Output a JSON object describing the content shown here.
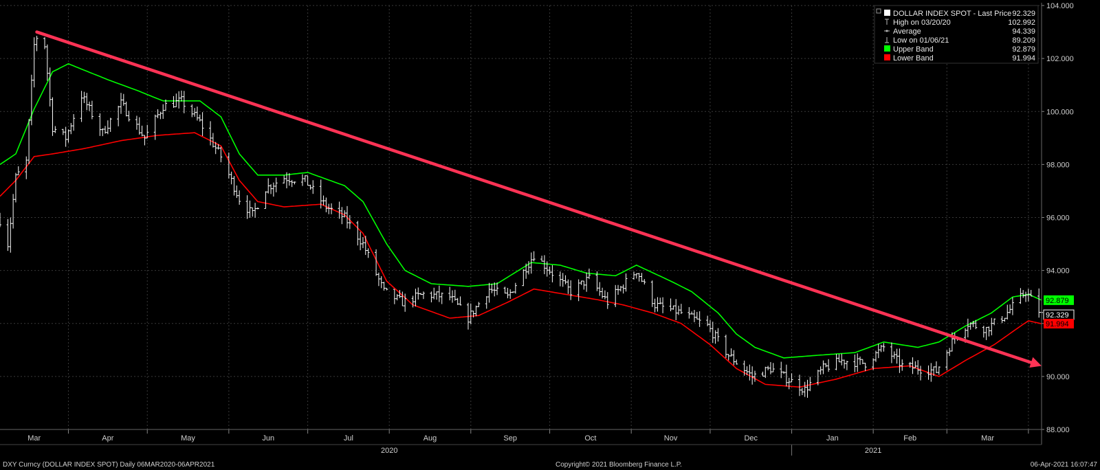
{
  "chart_data": {
    "type": "bar",
    "subtype": "ohlc-with-bands",
    "y_axis": {
      "min": 88,
      "max": 104,
      "ticks": [
        88,
        90,
        92,
        94,
        96,
        98,
        100,
        102,
        104
      ],
      "tick_labels": [
        "88.000",
        "90.000",
        "92.000",
        "94.000",
        "96.000",
        "98.000",
        "100.000",
        "102.000",
        "104.000"
      ],
      "position": "right"
    },
    "x_axis": {
      "months": [
        "Mar",
        "Apr",
        "May",
        "Jun",
        "Jul",
        "Aug",
        "Sep",
        "Oct",
        "Nov",
        "Dec",
        "Jan",
        "Feb",
        "Mar"
      ],
      "years": [
        "2020",
        "2021"
      ]
    },
    "grid": true,
    "legend": {
      "placement": "top-right",
      "entries": [
        {
          "label": "DOLLAR INDEX SPOT - Last Price",
          "value": "92.329",
          "color": "#ffffff",
          "marker": "square"
        },
        {
          "label": "High on 03/20/20",
          "value": "102.992",
          "color": "#bbbbbb",
          "marker": "high"
        },
        {
          "label": "Average",
          "value": "94.339",
          "color": "#bbbbbb",
          "marker": "avg"
        },
        {
          "label": "Low on 01/06/21",
          "value": "89.209",
          "color": "#bbbbbb",
          "marker": "low"
        },
        {
          "label": "Upper Band",
          "value": "92.879",
          "color": "#00ff00",
          "marker": "square"
        },
        {
          "label": "Lower Band",
          "value": "91.994",
          "color": "#ff0000",
          "marker": "square"
        }
      ]
    },
    "last_price_tags": [
      {
        "value": "92.879",
        "y": 92.879,
        "bg": "#00ff00",
        "fg": "#000000"
      },
      {
        "value": "92.329",
        "y": 92.329,
        "bg": "#000000",
        "fg": "#ffffff",
        "border": "#ffffff"
      },
      {
        "value": "91.994",
        "y": 91.994,
        "bg": "#ff0000",
        "fg": "#000000"
      }
    ],
    "series": [
      {
        "name": "DOLLAR INDEX SPOT - Last Price",
        "kind": "price-bars",
        "color": "#ffffff",
        "key_points": [
          [
            "2020-03-06",
            95.9
          ],
          [
            "2020-03-09",
            95.0
          ],
          [
            "2020-03-12",
            97.5
          ],
          [
            "2020-03-16",
            98.1
          ],
          [
            "2020-03-19",
            102.5
          ],
          [
            "2020-03-20",
            102.8
          ],
          [
            "2020-03-23",
            102.5
          ],
          [
            "2020-03-26",
            99.4
          ],
          [
            "2020-03-31",
            99.0
          ],
          [
            "2020-04-06",
            100.6
          ],
          [
            "2020-04-14",
            99.2
          ],
          [
            "2020-04-21",
            100.3
          ],
          [
            "2020-04-30",
            99.0
          ],
          [
            "2020-05-07",
            100.2
          ],
          [
            "2020-05-14",
            100.4
          ],
          [
            "2020-05-21",
            99.6
          ],
          [
            "2020-05-29",
            98.3
          ],
          [
            "2020-06-05",
            96.7
          ],
          [
            "2020-06-10",
            96.1
          ],
          [
            "2020-06-15",
            97.1
          ],
          [
            "2020-06-22",
            97.5
          ],
          [
            "2020-06-30",
            97.4
          ],
          [
            "2020-07-08",
            96.4
          ],
          [
            "2020-07-15",
            96.0
          ],
          [
            "2020-07-22",
            95.0
          ],
          [
            "2020-07-30",
            93.2
          ],
          [
            "2020-08-06",
            92.8
          ],
          [
            "2020-08-14",
            93.1
          ],
          [
            "2020-08-24",
            93.0
          ],
          [
            "2020-08-31",
            92.2
          ],
          [
            "2020-09-08",
            93.3
          ],
          [
            "2020-09-15",
            93.0
          ],
          [
            "2020-09-25",
            94.6
          ],
          [
            "2020-10-02",
            93.9
          ],
          [
            "2020-10-09",
            93.2
          ],
          [
            "2020-10-16",
            93.7
          ],
          [
            "2020-10-23",
            92.8
          ],
          [
            "2020-11-03",
            94.0
          ],
          [
            "2020-11-10",
            92.7
          ],
          [
            "2020-11-20",
            92.4
          ],
          [
            "2020-11-30",
            91.9
          ],
          [
            "2020-12-08",
            90.8
          ],
          [
            "2020-12-17",
            90.0
          ],
          [
            "2020-12-24",
            90.3
          ],
          [
            "2021-01-06",
            89.5
          ],
          [
            "2021-01-13",
            90.3
          ],
          [
            "2021-01-20",
            90.6
          ],
          [
            "2021-01-29",
            90.5
          ],
          [
            "2021-02-05",
            91.1
          ],
          [
            "2021-02-12",
            90.4
          ],
          [
            "2021-02-25",
            90.2
          ],
          [
            "2021-03-04",
            91.5
          ],
          [
            "2021-03-09",
            92.0
          ],
          [
            "2021-03-16",
            91.8
          ],
          [
            "2021-03-23",
            92.3
          ],
          [
            "2021-03-31",
            93.2
          ],
          [
            "2021-04-06",
            92.33
          ]
        ]
      },
      {
        "name": "Upper Band",
        "kind": "line",
        "color": "#00ff00",
        "key_points": [
          [
            "2020-03-06",
            98.0
          ],
          [
            "2020-03-12",
            98.4
          ],
          [
            "2020-03-19",
            100.1
          ],
          [
            "2020-03-26",
            101.5
          ],
          [
            "2020-04-01",
            101.8
          ],
          [
            "2020-04-16",
            101.2
          ],
          [
            "2020-04-27",
            100.8
          ],
          [
            "2020-05-07",
            100.4
          ],
          [
            "2020-05-21",
            100.4
          ],
          [
            "2020-05-29",
            99.8
          ],
          [
            "2020-06-05",
            98.4
          ],
          [
            "2020-06-12",
            97.6
          ],
          [
            "2020-06-22",
            97.6
          ],
          [
            "2020-07-01",
            97.7
          ],
          [
            "2020-07-15",
            97.2
          ],
          [
            "2020-07-22",
            96.6
          ],
          [
            "2020-07-31",
            95.0
          ],
          [
            "2020-08-07",
            94.0
          ],
          [
            "2020-08-17",
            93.5
          ],
          [
            "2020-08-31",
            93.4
          ],
          [
            "2020-09-11",
            93.5
          ],
          [
            "2020-09-24",
            94.3
          ],
          [
            "2020-10-05",
            94.2
          ],
          [
            "2020-10-15",
            93.9
          ],
          [
            "2020-10-26",
            93.8
          ],
          [
            "2020-11-03",
            94.2
          ],
          [
            "2020-11-16",
            93.6
          ],
          [
            "2020-11-24",
            93.2
          ],
          [
            "2020-12-04",
            92.4
          ],
          [
            "2020-12-11",
            91.6
          ],
          [
            "2020-12-18",
            91.1
          ],
          [
            "2020-12-29",
            90.7
          ],
          [
            "2021-01-11",
            90.8
          ],
          [
            "2021-01-25",
            90.9
          ],
          [
            "2021-02-05",
            91.3
          ],
          [
            "2021-02-18",
            91.1
          ],
          [
            "2021-02-26",
            91.3
          ],
          [
            "2021-03-08",
            91.9
          ],
          [
            "2021-03-18",
            92.4
          ],
          [
            "2021-03-26",
            93.0
          ],
          [
            "2021-04-01",
            93.1
          ],
          [
            "2021-04-06",
            92.88
          ]
        ]
      },
      {
        "name": "Lower Band",
        "kind": "line",
        "color": "#ff0000",
        "key_points": [
          [
            "2020-03-06",
            96.8
          ],
          [
            "2020-03-12",
            97.4
          ],
          [
            "2020-03-19",
            98.3
          ],
          [
            "2020-03-26",
            98.4
          ],
          [
            "2020-04-07",
            98.6
          ],
          [
            "2020-04-21",
            98.9
          ],
          [
            "2020-05-05",
            99.1
          ],
          [
            "2020-05-19",
            99.2
          ],
          [
            "2020-05-29",
            98.7
          ],
          [
            "2020-06-05",
            97.4
          ],
          [
            "2020-06-12",
            96.6
          ],
          [
            "2020-06-22",
            96.4
          ],
          [
            "2020-07-06",
            96.5
          ],
          [
            "2020-07-15",
            96.1
          ],
          [
            "2020-07-22",
            95.4
          ],
          [
            "2020-07-31",
            93.6
          ],
          [
            "2020-08-10",
            92.7
          ],
          [
            "2020-08-24",
            92.2
          ],
          [
            "2020-09-04",
            92.3
          ],
          [
            "2020-09-15",
            92.8
          ],
          [
            "2020-09-25",
            93.3
          ],
          [
            "2020-10-07",
            93.1
          ],
          [
            "2020-10-19",
            92.9
          ],
          [
            "2020-10-29",
            92.7
          ],
          [
            "2020-11-09",
            92.4
          ],
          [
            "2020-11-20",
            92.0
          ],
          [
            "2020-12-01",
            91.2
          ],
          [
            "2020-12-11",
            90.3
          ],
          [
            "2020-12-22",
            89.7
          ],
          [
            "2021-01-04",
            89.6
          ],
          [
            "2021-01-18",
            89.9
          ],
          [
            "2021-02-01",
            90.3
          ],
          [
            "2021-02-15",
            90.4
          ],
          [
            "2021-02-26",
            90.0
          ],
          [
            "2021-03-08",
            90.6
          ],
          [
            "2021-03-19",
            91.2
          ],
          [
            "2021-03-29",
            91.9
          ],
          [
            "2021-04-01",
            92.1
          ],
          [
            "2021-04-06",
            91.99
          ]
        ]
      },
      {
        "name": "trendline",
        "kind": "arrow",
        "color": "#ff3355",
        "key_points": [
          [
            "2020-03-20",
            103.0
          ],
          [
            "2021-04-06",
            90.4
          ]
        ]
      }
    ],
    "footer": {
      "left": "DXY Curncy (DOLLAR INDEX SPOT)  Daily 06MAR2020-06APR2021",
      "center": "Copyright© 2021 Bloomberg Finance L.P.",
      "right": "06-Apr-2021 16:07:47"
    }
  }
}
